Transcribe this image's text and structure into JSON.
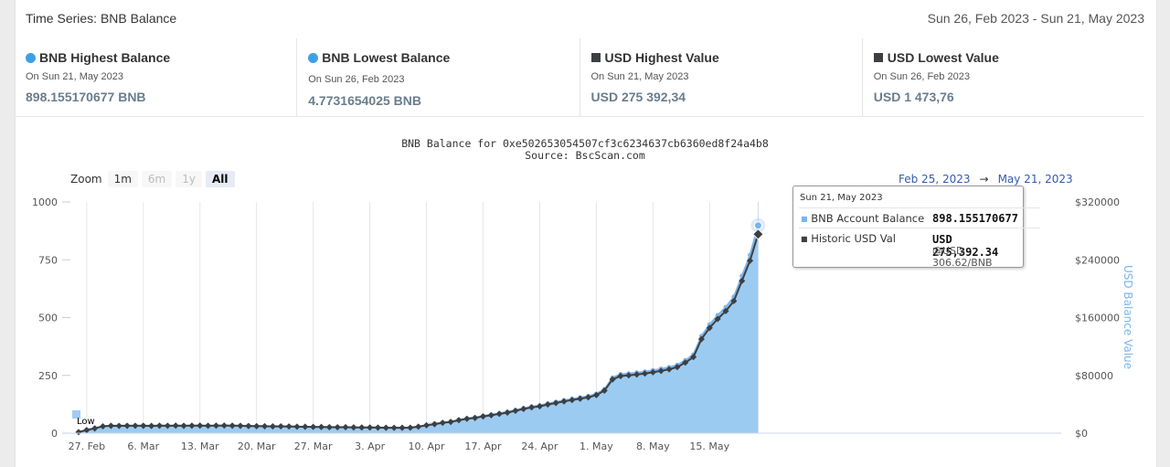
{
  "header": {
    "title": "Time Series: BNB Balance",
    "date_range": "Sun 26, Feb 2023 - Sun 21, May 2023"
  },
  "stats": [
    {
      "title": "BNB Highest Balance",
      "marker": "circle",
      "color": "#3ea0e4",
      "date": "On Sun 21, May 2023",
      "value": "898.155170677 BNB"
    },
    {
      "title": "BNB Lowest Balance",
      "marker": "circle",
      "color": "#3ea0e4",
      "date": "On Sun 26, Feb 2023",
      "value": "4.7731654025 BNB"
    },
    {
      "title": "USD Highest Value",
      "marker": "square",
      "color": "#3d3f43",
      "date": "On Sun 21, May 2023",
      "value": "USD 275 392,34"
    },
    {
      "title": "USD Lowest Value",
      "marker": "square",
      "color": "#3d3f43",
      "date": "On Sun 26, Feb 2023",
      "value": "USD 1 473,76"
    }
  ],
  "chart_title": "BNB Balance for 0xe502653054507cf3c6234637cb6360ed8f24a4b8",
  "chart_subtitle": "Source: BscScan.com",
  "zoom": {
    "label": "Zoom",
    "buttons": [
      {
        "label": "1m",
        "state": "normal"
      },
      {
        "label": "6m",
        "state": "disabled"
      },
      {
        "label": "1y",
        "state": "disabled"
      },
      {
        "label": "All",
        "state": "active"
      }
    ]
  },
  "range": {
    "from": "Feb 25, 2023",
    "arrow": "→",
    "to": "May 21, 2023"
  },
  "tooltip": {
    "date": "Sun 21, May 2023",
    "series1_label": "BNB Account Balance",
    "series1_value": "898.155170677",
    "series2_label": "Historic USD Val",
    "series2_value": "USD 275,392.34",
    "series2_sub": "@USD 306.62/BNB"
  },
  "chart_data": {
    "type": "area",
    "x_tick_labels": [
      "27. Feb",
      "6. Mar",
      "13. Mar",
      "20. Mar",
      "27. Mar",
      "3. Apr",
      "10. Apr",
      "17. Apr",
      "24. Apr",
      "1. May",
      "8. May",
      "15. May"
    ],
    "y_left_ticks": [
      "0",
      "250",
      "500",
      "750",
      "1000"
    ],
    "y_right_ticks": [
      "$0",
      "$80000",
      "$160000",
      "$240000",
      "$320000"
    ],
    "y_right_label": "USD Balance Value",
    "ylim_left": [
      0,
      1000
    ],
    "ylim_right": [
      0,
      320000
    ],
    "low_flag": "Low",
    "grid": "vertical",
    "series": [
      {
        "name": "BNB Account Balance",
        "color": "#7cb5ec",
        "axis": "left",
        "x": [
          "2023-02-26",
          "2023-02-27",
          "2023-02-28",
          "2023-03-01",
          "2023-03-02",
          "2023-03-03",
          "2023-03-04",
          "2023-03-05",
          "2023-03-06",
          "2023-03-07",
          "2023-03-08",
          "2023-03-09",
          "2023-03-10",
          "2023-03-11",
          "2023-03-12",
          "2023-03-13",
          "2023-03-14",
          "2023-03-15",
          "2023-03-16",
          "2023-03-17",
          "2023-03-18",
          "2023-03-19",
          "2023-03-20",
          "2023-03-21",
          "2023-03-22",
          "2023-03-23",
          "2023-03-24",
          "2023-03-25",
          "2023-03-26",
          "2023-03-27",
          "2023-03-28",
          "2023-03-29",
          "2023-03-30",
          "2023-03-31",
          "2023-04-01",
          "2023-04-02",
          "2023-04-03",
          "2023-04-04",
          "2023-04-05",
          "2023-04-06",
          "2023-04-07",
          "2023-04-08",
          "2023-04-09",
          "2023-04-10",
          "2023-04-11",
          "2023-04-12",
          "2023-04-13",
          "2023-04-14",
          "2023-04-15",
          "2023-04-16",
          "2023-04-17",
          "2023-04-18",
          "2023-04-19",
          "2023-04-20",
          "2023-04-21",
          "2023-04-22",
          "2023-04-23",
          "2023-04-24",
          "2023-04-25",
          "2023-04-26",
          "2023-04-27",
          "2023-04-28",
          "2023-04-29",
          "2023-04-30",
          "2023-05-01",
          "2023-05-02",
          "2023-05-03",
          "2023-05-04",
          "2023-05-05",
          "2023-05-06",
          "2023-05-07",
          "2023-05-08",
          "2023-05-09",
          "2023-05-10",
          "2023-05-11",
          "2023-05-12",
          "2023-05-13",
          "2023-05-14",
          "2023-05-15",
          "2023-05-16",
          "2023-05-17",
          "2023-05-18",
          "2023-05-19",
          "2023-05-20",
          "2023-05-21"
        ],
        "values": [
          5,
          15,
          22,
          30,
          33,
          33,
          33,
          33,
          33,
          33,
          33,
          33,
          33,
          33,
          33,
          33,
          33,
          33,
          33,
          33,
          32,
          32,
          31,
          30,
          30,
          30,
          29,
          28,
          28,
          27,
          27,
          26,
          26,
          26,
          25,
          25,
          25,
          25,
          24,
          24,
          24,
          25,
          29,
          35,
          41,
          46,
          50,
          58,
          64,
          68,
          75,
          80,
          86,
          92,
          100,
          108,
          115,
          120,
          128,
          135,
          142,
          148,
          154,
          160,
          170,
          190,
          240,
          255,
          258,
          262,
          266,
          272,
          278,
          285,
          295,
          315,
          340,
          420,
          470,
          510,
          545,
          590,
          680,
          770,
          898.155170677
        ]
      },
      {
        "name": "Historic USD Val",
        "color": "#3d3f43",
        "axis": "right",
        "x": [
          "2023-02-26",
          "2023-02-27",
          "2023-02-28",
          "2023-03-01",
          "2023-03-02",
          "2023-03-03",
          "2023-03-04",
          "2023-03-05",
          "2023-03-06",
          "2023-03-07",
          "2023-03-08",
          "2023-03-09",
          "2023-03-10",
          "2023-03-11",
          "2023-03-12",
          "2023-03-13",
          "2023-03-14",
          "2023-03-15",
          "2023-03-16",
          "2023-03-17",
          "2023-03-18",
          "2023-03-19",
          "2023-03-20",
          "2023-03-21",
          "2023-03-22",
          "2023-03-23",
          "2023-03-24",
          "2023-03-25",
          "2023-03-26",
          "2023-03-27",
          "2023-03-28",
          "2023-03-29",
          "2023-03-30",
          "2023-03-31",
          "2023-04-01",
          "2023-04-02",
          "2023-04-03",
          "2023-04-04",
          "2023-04-05",
          "2023-04-06",
          "2023-04-07",
          "2023-04-08",
          "2023-04-09",
          "2023-04-10",
          "2023-04-11",
          "2023-04-12",
          "2023-04-13",
          "2023-04-14",
          "2023-04-15",
          "2023-04-16",
          "2023-04-17",
          "2023-04-18",
          "2023-04-19",
          "2023-04-20",
          "2023-04-21",
          "2023-04-22",
          "2023-04-23",
          "2023-04-24",
          "2023-04-25",
          "2023-04-26",
          "2023-04-27",
          "2023-04-28",
          "2023-04-29",
          "2023-04-30",
          "2023-05-01",
          "2023-05-02",
          "2023-05-03",
          "2023-05-04",
          "2023-05-05",
          "2023-05-06",
          "2023-05-07",
          "2023-05-08",
          "2023-05-09",
          "2023-05-10",
          "2023-05-11",
          "2023-05-12",
          "2023-05-13",
          "2023-05-14",
          "2023-05-15",
          "2023-05-16",
          "2023-05-17",
          "2023-05-18",
          "2023-05-19",
          "2023-05-20",
          "2023-05-21"
        ],
        "values": [
          1473.76,
          4300,
          6600,
          9500,
          10200,
          10100,
          10200,
          10300,
          10200,
          10000,
          10400,
          10300,
          10500,
          10200,
          10400,
          10500,
          10300,
          10500,
          10600,
          10400,
          10200,
          9900,
          9700,
          9600,
          9400,
          9500,
          9300,
          9000,
          8900,
          8700,
          8600,
          8300,
          8200,
          8300,
          8000,
          7900,
          7800,
          7700,
          7500,
          7400,
          7500,
          7600,
          9000,
          10900,
          12500,
          14400,
          15600,
          18000,
          19900,
          21100,
          23200,
          24800,
          26700,
          28500,
          31000,
          33500,
          35700,
          37200,
          39700,
          41800,
          44000,
          45900,
          47700,
          49600,
          52700,
          58900,
          74400,
          79000,
          80000,
          81200,
          82500,
          84300,
          86200,
          88400,
          91500,
          97700,
          105400,
          130200,
          145700,
          158100,
          169000,
          182900,
          210800,
          238700,
          275392.34
        ]
      }
    ]
  }
}
